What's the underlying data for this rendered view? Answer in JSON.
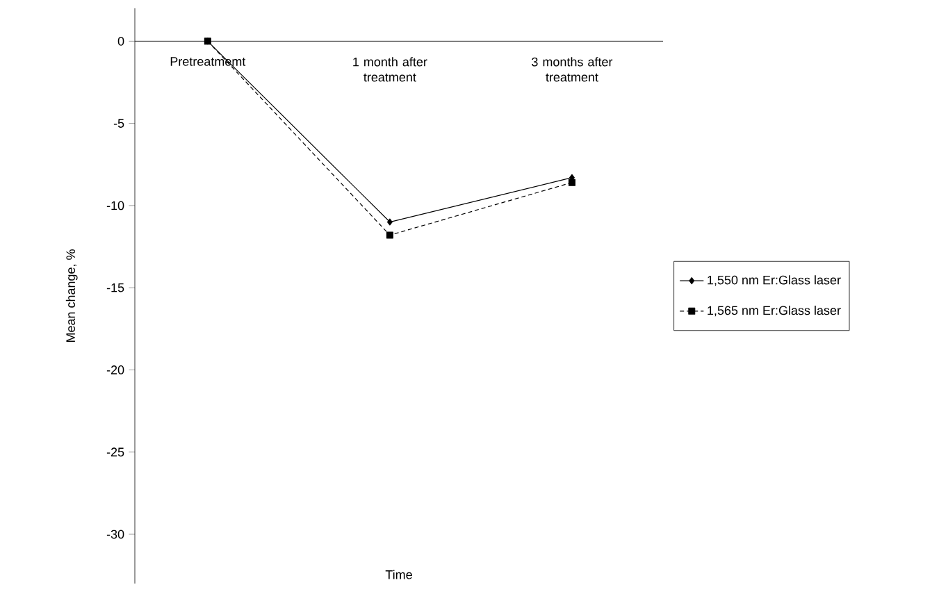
{
  "chart_data": {
    "type": "line",
    "xlabel": "Time",
    "ylabel": "Mean change, %",
    "categories": [
      "Pretreatmemt",
      "1 month after treatment",
      "3 months after treatment"
    ],
    "series": [
      {
        "name": "1,550 nm Er:Glass laser",
        "color": "#000000",
        "marker": "diamond",
        "line_style": "solid",
        "values": [
          0,
          -11.0,
          -8.3
        ]
      },
      {
        "name": "1,565 nm Er:Glass laser",
        "color": "#000000",
        "marker": "square",
        "line_style": "dotted",
        "values": [
          0,
          -11.8,
          -8.6
        ]
      }
    ],
    "ylim": [
      -33,
      2
    ],
    "yticks": [
      0,
      -5,
      -10,
      -15,
      -20,
      -25,
      -30
    ],
    "legend": "right",
    "grid": false
  }
}
